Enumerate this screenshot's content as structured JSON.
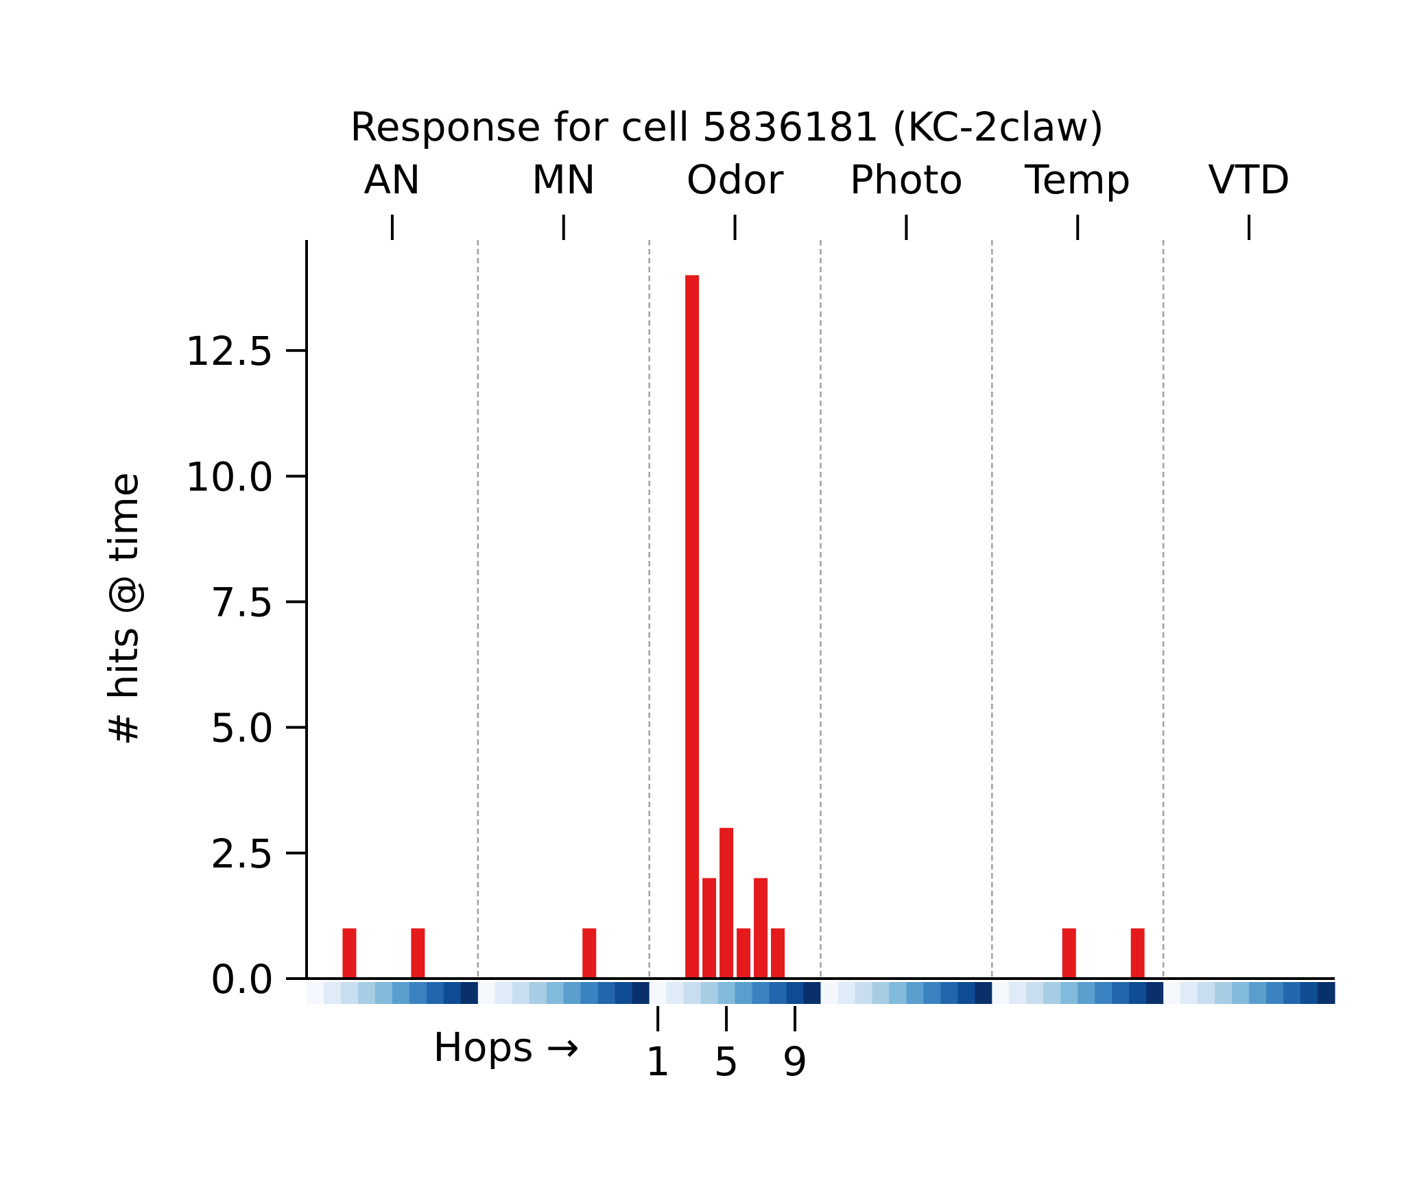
{
  "chart_data": {
    "type": "bar",
    "title": "Response for cell 5836181 (KC-2claw)",
    "ylabel": "# hits @ time",
    "ylim": [
      0,
      14.7
    ],
    "y_ticks": [
      "0.0",
      "2.5",
      "5.0",
      "7.5",
      "10.0",
      "12.5"
    ],
    "y_tick_values": [
      0,
      2.5,
      5.0,
      7.5,
      10.0,
      12.5
    ],
    "groups": [
      "AN",
      "MN",
      "Odor",
      "Photo",
      "Temp",
      "VTD"
    ],
    "hops_per_group": 10,
    "hop_label": "Hops →",
    "hop_ticks": [
      "1",
      "5",
      "9"
    ],
    "hop_tick_values": [
      1,
      5,
      9
    ],
    "hop_tick_group": "Odor",
    "grid": false,
    "group_separators": "dashed",
    "bar_color": "#e41a1c",
    "hop_colormap": "Blues",
    "series": [
      {
        "group": "AN",
        "values": [
          0,
          0,
          1,
          0,
          0,
          0,
          1,
          0,
          0,
          0
        ]
      },
      {
        "group": "MN",
        "values": [
          0,
          0,
          0,
          0,
          0,
          0,
          1,
          0,
          0,
          0
        ]
      },
      {
        "group": "Odor",
        "values": [
          0,
          0,
          14,
          2,
          3,
          1,
          2,
          1,
          0,
          0
        ]
      },
      {
        "group": "Photo",
        "values": [
          0,
          0,
          0,
          0,
          0,
          0,
          0,
          0,
          0,
          0
        ]
      },
      {
        "group": "Temp",
        "values": [
          0,
          0,
          0,
          0,
          1,
          0,
          0,
          0,
          1,
          0
        ]
      },
      {
        "group": "VTD",
        "values": [
          0,
          0,
          0,
          0,
          0,
          0,
          0,
          0,
          0,
          0
        ]
      }
    ],
    "hop_colors": [
      "#f4f8fc",
      "#dfebf6",
      "#c9ddf0",
      "#a7cde4",
      "#82badb",
      "#5a9ece",
      "#3a83c0",
      "#2266ad",
      "#0e4c93",
      "#0a306b"
    ]
  }
}
